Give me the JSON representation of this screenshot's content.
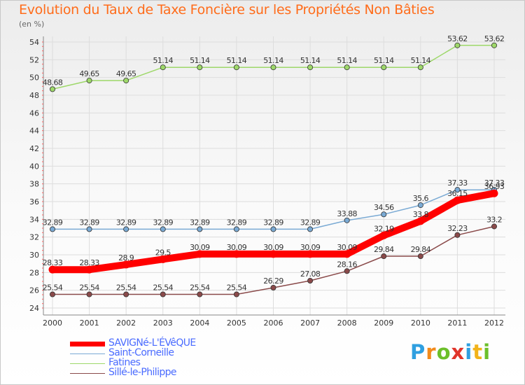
{
  "title": "Evolution du Taux de Taxe Foncière sur les Propriétés Non Bâties",
  "y_unit": "(en %)",
  "brand": {
    "letters": [
      "P",
      "r",
      "o",
      "x",
      "i",
      "t",
      "i"
    ],
    "colors": [
      "#2f9fe0",
      "#f28a1a",
      "#6cbf2a",
      "#e0342a",
      "#2f9fe0",
      "#f2b31a",
      "#6cbf2a"
    ]
  },
  "chart_data": {
    "type": "line",
    "title": "Evolution du Taux de Taxe Foncière sur les Propriétés Non Bâties",
    "ylabel": "(en %)",
    "xlabel": "",
    "categories": [
      "2000",
      "2001",
      "2002",
      "2003",
      "2004",
      "2005",
      "2006",
      "2007",
      "2008",
      "2009",
      "2010",
      "2011",
      "2012"
    ],
    "ylim": [
      24,
      54
    ],
    "y_ticks": [
      24,
      26,
      28,
      30,
      32,
      34,
      36,
      38,
      40,
      42,
      44,
      46,
      48,
      50,
      52,
      54
    ],
    "grid": true,
    "legend_position": "bottom-left",
    "series": [
      {
        "name": "SAVIGNé-L'ÉVêQUE",
        "color": "#ff0000",
        "emphasis": true,
        "values": [
          28.33,
          28.33,
          28.9,
          29.5,
          30.09,
          30.09,
          30.09,
          30.09,
          30.09,
          32.19,
          33.8,
          36.15,
          36.93
        ],
        "labels": [
          "28.33",
          "28.33",
          "28.9",
          "29.5",
          "30.09",
          "30.09",
          "30.09",
          "30.09",
          "30.09",
          "32.19",
          "33.8",
          "36.15",
          "36.93"
        ]
      },
      {
        "name": "Saint-Corneille",
        "color": "#7aaad4",
        "values": [
          32.89,
          32.89,
          32.89,
          32.89,
          32.89,
          32.89,
          32.89,
          32.89,
          33.88,
          34.56,
          35.6,
          37.33,
          37.33
        ],
        "labels": [
          "32.89",
          "32.89",
          "32.89",
          "32.89",
          "32.89",
          "32.89",
          "32.89",
          "32.89",
          "33.88",
          "34.56",
          "35.6",
          "37.33",
          "37.33"
        ]
      },
      {
        "name": "Fatines",
        "color": "#9ed86a",
        "values": [
          48.68,
          49.65,
          49.65,
          51.14,
          51.14,
          51.14,
          51.14,
          51.14,
          51.14,
          51.14,
          51.14,
          53.62,
          53.62
        ],
        "labels": [
          "48.68",
          "49.65",
          "49.65",
          "51.14",
          "51.14",
          "51.14",
          "51.14",
          "51.14",
          "51.14",
          "51.14",
          "51.14",
          "53.62",
          "53.62"
        ]
      },
      {
        "name": "Sillé-le-Philippe",
        "color": "#8a4a4a",
        "values": [
          25.54,
          25.54,
          25.54,
          25.54,
          25.54,
          25.54,
          26.29,
          27.08,
          28.16,
          29.84,
          29.84,
          32.23,
          33.2
        ],
        "labels": [
          "25.54",
          "25.54",
          "25.54",
          "25.54",
          "25.54",
          "25.54",
          "26.29",
          "27.08",
          "28.16",
          "29.84",
          "29.84",
          "32.23",
          "33.2"
        ]
      }
    ]
  }
}
